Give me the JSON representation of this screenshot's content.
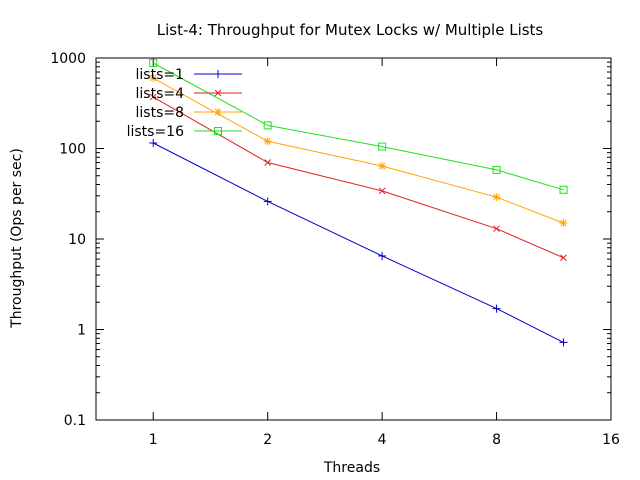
{
  "chart_data": {
    "type": "line",
    "title": "List-4: Throughput for Mutex Locks w/ Multiple Lists",
    "xlabel": "Threads",
    "ylabel": "Throughput (Ops per sec)",
    "x_scale": "log2",
    "y_scale": "log10",
    "xlim": [
      0.707,
      16
    ],
    "ylim": [
      0.1,
      1000
    ],
    "x_ticks": [
      1,
      2,
      4,
      8,
      16
    ],
    "y_ticks": [
      0.1,
      1,
      10,
      100,
      1000
    ],
    "x_tick_labels": [
      "1",
      "2",
      "4",
      "8",
      "16"
    ],
    "y_tick_labels": [
      "0.1",
      "1",
      "10",
      "100",
      "1000"
    ],
    "legend_position": "top-left",
    "x": [
      1,
      2,
      4,
      8,
      12
    ],
    "series": [
      {
        "name": "lists=1",
        "color": "#0000cc",
        "marker": "plus",
        "values": [
          115,
          26,
          6.5,
          1.7,
          0.72
        ]
      },
      {
        "name": "lists=4",
        "color": "#e02020",
        "marker": "cross",
        "values": [
          370,
          70,
          34,
          13,
          6.2
        ]
      },
      {
        "name": "lists=8",
        "color": "#ffa500",
        "marker": "star",
        "values": [
          600,
          120,
          64,
          29,
          15
        ]
      },
      {
        "name": "lists=16",
        "color": "#20e020",
        "marker": "square",
        "values": [
          880,
          180,
          105,
          58,
          35
        ]
      }
    ]
  }
}
